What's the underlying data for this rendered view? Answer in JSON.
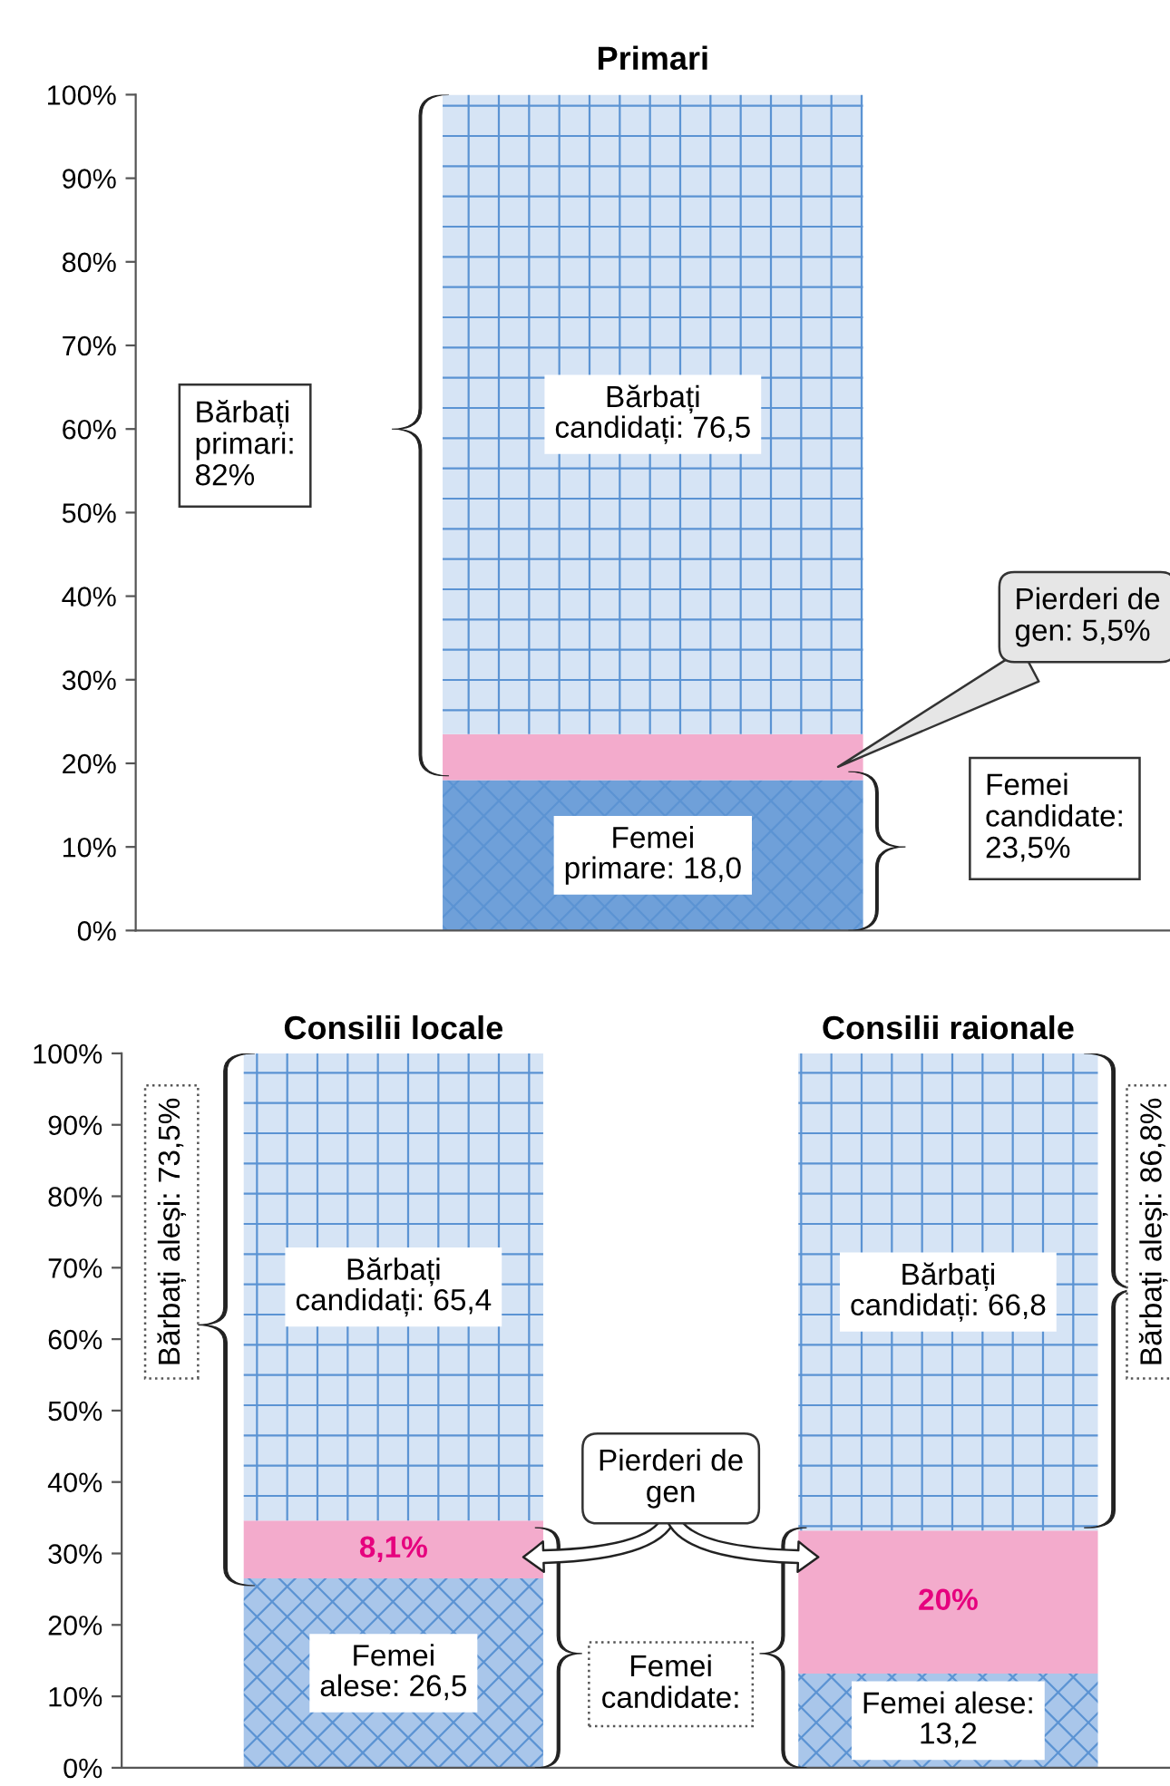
{
  "chart_data": [
    {
      "type": "bar",
      "title": "Primari",
      "categories": [
        null
      ],
      "stacked": true,
      "grid": false,
      "series": [
        {
          "color": "#6fa0d9",
          "values": [
            18.0
          ],
          "value_labels": [
            "Femei\nprimare: 18,0"
          ]
        },
        {
          "color": "#f3abcc",
          "values": [
            5.5
          ],
          "value_labels": [
            null
          ]
        },
        {
          "color": "#d6e4f5",
          "values": [
            76.5
          ],
          "value_labels": [
            "Bărbați\ncandidați: 76,5"
          ]
        }
      ],
      "ylim": [
        0,
        100
      ],
      "yticks": [
        {
          "value": 0,
          "label": "0%"
        },
        {
          "value": 10,
          "label": "10%"
        },
        {
          "value": 20,
          "label": "20%"
        },
        {
          "value": 30,
          "label": "30%"
        },
        {
          "value": 40,
          "label": "40%"
        },
        {
          "value": 50,
          "label": "50%"
        },
        {
          "value": 60,
          "label": "60%"
        },
        {
          "value": 70,
          "label": "70%"
        },
        {
          "value": 80,
          "label": "80%"
        },
        {
          "value": 90,
          "label": "90%"
        },
        {
          "value": 100,
          "label": "100%"
        }
      ],
      "annotations": [
        "Bărbați\nprimari:\n82%",
        "Pierderi de\ngen: 5,5%",
        "Femei\ncandidate:\n23,5%"
      ]
    },
    {
      "type": "bar",
      "categories": [
        "Consilii locale",
        "Consilii raionale"
      ],
      "stacked": true,
      "grid": false,
      "series": [
        {
          "color": "#a9c6ea",
          "values": [
            26.5,
            13.2
          ],
          "value_labels": [
            "Femei\nalese: 26,5",
            "Femei alese:\n13,2"
          ]
        },
        {
          "color": "#f3abcc",
          "values": [
            8.1,
            20
          ],
          "value_labels": [
            "8,1%",
            "20%"
          ]
        },
        {
          "color": "#d6e4f5",
          "values": [
            65.4,
            66.8
          ],
          "value_labels": [
            "Bărbați\ncandidați: 65,4",
            "Bărbați\ncandidați: 66,8"
          ]
        }
      ],
      "ylim": [
        0,
        100
      ],
      "yticks": [
        {
          "value": 0,
          "label": "0%"
        },
        {
          "value": 10,
          "label": "10%"
        },
        {
          "value": 20,
          "label": "20%"
        },
        {
          "value": 30,
          "label": "30%"
        },
        {
          "value": 40,
          "label": "40%"
        },
        {
          "value": 50,
          "label": "50%"
        },
        {
          "value": 60,
          "label": "60%"
        },
        {
          "value": 70,
          "label": "70%"
        },
        {
          "value": 80,
          "label": "80%"
        },
        {
          "value": 90,
          "label": "90%"
        },
        {
          "value": 100,
          "label": "100%"
        }
      ],
      "annotations": [
        "Bărbați aleși: 73,5%",
        "Bărbați aleși: 86,8%",
        "Pierderi de\ngen",
        "Femei\ncandidate:"
      ]
    }
  ]
}
